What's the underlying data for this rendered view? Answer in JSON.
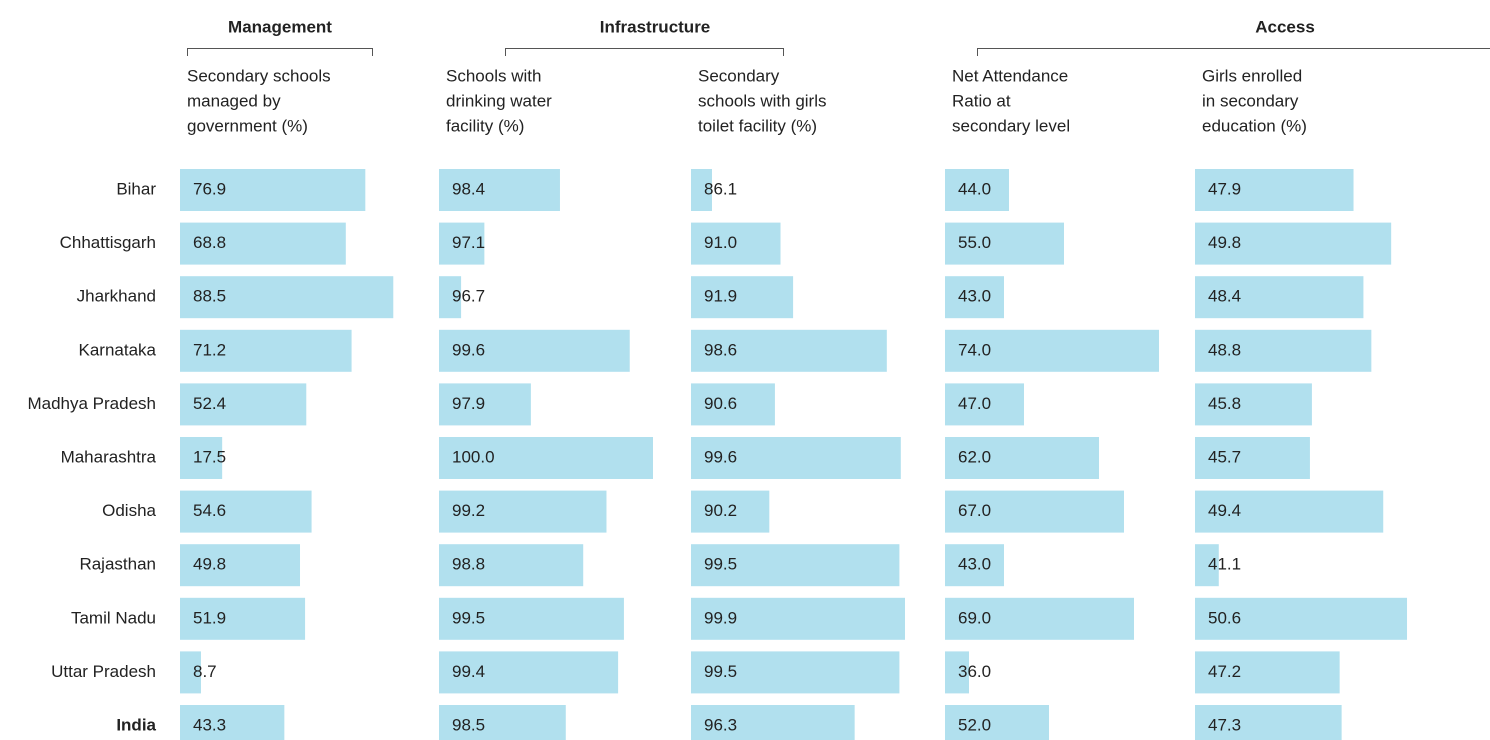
{
  "chart_data": {
    "type": "bar",
    "orientation": "horizontal",
    "color": "#b1e0ee",
    "groups": [
      {
        "title": "Management"
      },
      {
        "title": "Infrastructure"
      },
      {
        "title": "Access"
      }
    ],
    "categories": [
      "Bihar",
      "Chhattisgarh",
      "Jharkhand",
      "Karnataka",
      "Madhya Pradesh",
      "Maharashtra",
      "Odisha",
      "Rajasthan",
      "Tamil Nadu",
      "Uttar Pradesh",
      "India"
    ],
    "series": [
      {
        "name": [
          "Secondary schools",
          "managed by",
          "government (%)"
        ],
        "values": [
          76.9,
          68.8,
          88.5,
          71.2,
          52.4,
          17.5,
          54.6,
          49.8,
          51.9,
          8.7,
          43.3
        ],
        "xlim": [
          0,
          88.8
        ]
      },
      {
        "name": [
          "Schools with",
          "drinking water",
          "facility (%)"
        ],
        "values": [
          98.4,
          97.1,
          96.7,
          99.6,
          97.9,
          100,
          99.2,
          98.8,
          99.5,
          99.4,
          98.5
        ],
        "value_labels": [
          "98.4",
          "97.1",
          "96.7",
          "99.6",
          "97.9",
          "100.0",
          "99.2",
          "98.8",
          "99.5",
          "99.4",
          "98.5"
        ],
        "xlim": [
          96.32,
          100
        ]
      },
      {
        "name": [
          "Secondary",
          "schools with girls",
          "toilet facility (%)"
        ],
        "values": [
          86.1,
          91.0,
          91.9,
          98.6,
          90.6,
          99.6,
          90.2,
          99.5,
          99.9,
          99.5,
          96.3
        ],
        "value_labels": [
          "86.1",
          "91.0",
          "91.9",
          "98.6",
          "90.6",
          "99.6",
          "90.2",
          "99.5",
          "99.9",
          "99.5",
          "96.3"
        ],
        "xlim": [
          84.6,
          99.9
        ]
      },
      {
        "name": [
          "Net Attendance",
          "Ratio at",
          "secondary level"
        ],
        "values": [
          44,
          55,
          43,
          74,
          47,
          62,
          67,
          43,
          69,
          36,
          52
        ],
        "value_labels": [
          "44.0",
          "55.0",
          "43.0",
          "74.0",
          "47.0",
          "62.0",
          "67.0",
          "43.0",
          "69.0",
          "36.0",
          "52.0"
        ],
        "xlim": [
          31.2,
          74
        ]
      },
      {
        "name": [
          "Girls enrolled",
          "in secondary",
          "education (%)"
        ],
        "values": [
          47.9,
          49.8,
          48.4,
          48.8,
          45.8,
          45.7,
          49.4,
          41.1,
          50.6,
          47.2,
          47.3
        ],
        "xlim": [
          39.9,
          50.7
        ]
      }
    ]
  }
}
